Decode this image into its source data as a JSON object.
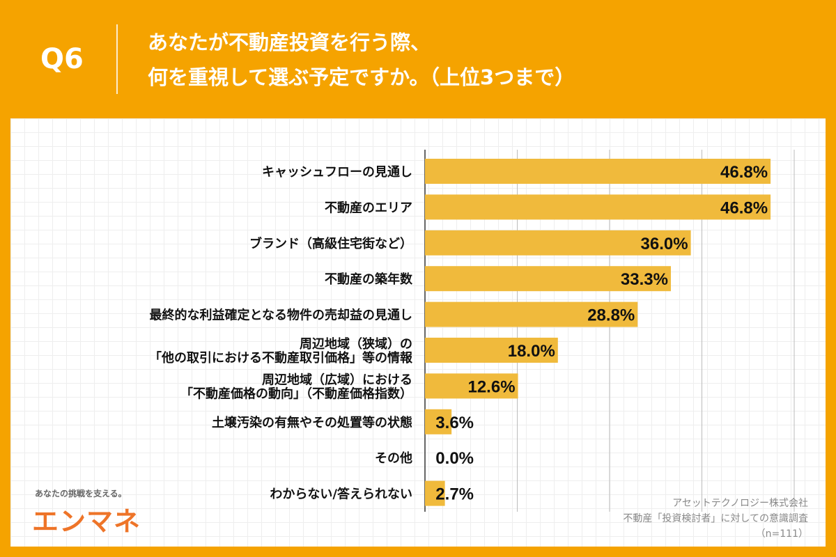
{
  "header": {
    "q": "Q6",
    "title_line1": "あなたが不動産投資を行う際、",
    "title_line2": "何を重視して選ぶ予定ですか。（上位3つまで）"
  },
  "chart_data": {
    "type": "bar",
    "orientation": "horizontal",
    "categories": [
      "キャッシュフローの見通し",
      "不動産のエリア",
      "ブランド（高級住宅街など）",
      "不動産の築年数",
      "最終的な利益確定となる物件の売却益の見通し",
      "周辺地域（狭域）の\n「他の取引における不動産取引価格」等の情報",
      "周辺地域（広域）における\n「不動産価格の動向」（不動産価格指数）",
      "土壌汚染の有無やその処置等の状態",
      "その他",
      "わからない/答えられない"
    ],
    "values": [
      46.8,
      46.8,
      36.0,
      33.3,
      28.8,
      18.0,
      12.6,
      3.6,
      0.0,
      2.7
    ],
    "labels": [
      "46.8%",
      "46.8%",
      "36.0%",
      "33.3%",
      "28.8%",
      "18.0%",
      "12.6%",
      "3.6%",
      "0.0%",
      "2.7%"
    ],
    "xlim": [
      0,
      50
    ],
    "grid": true,
    "bar_color": "#F0BA3C"
  },
  "footer": {
    "tagline": "あなたの挑戦を支える。",
    "logo": "エンマネ",
    "source_company": "アセットテクノロジー株式会社",
    "source_survey": "不動産「投資検討者」に対しての意識調査",
    "sample": "（n=111）"
  }
}
